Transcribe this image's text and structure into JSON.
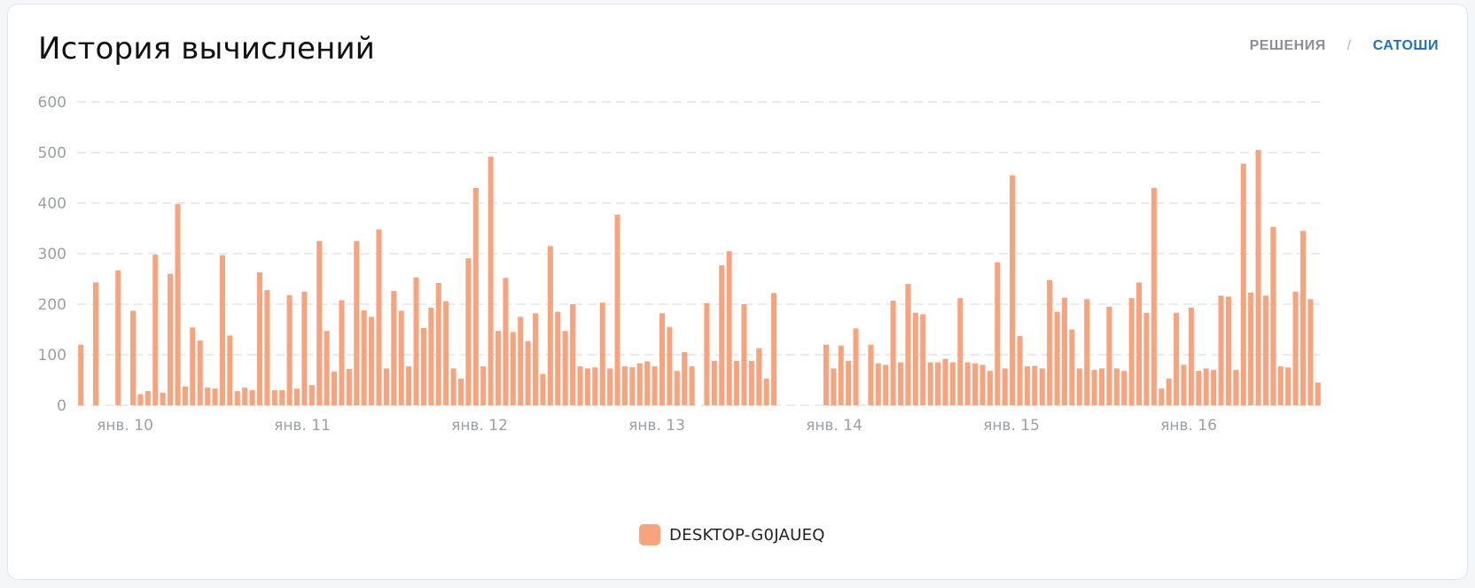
{
  "header": {
    "title": "История вычислений",
    "toggle": {
      "option_a": "РЕШЕНИЯ",
      "separator": "/",
      "option_b": "САТОШИ",
      "active": "option_b"
    }
  },
  "chart_data": {
    "type": "bar",
    "ylim": [
      0,
      600
    ],
    "yticks": [
      "0",
      "100",
      "200",
      "300",
      "400",
      "500",
      "600"
    ],
    "xtick_labels": [
      "янв. 10",
      "янв. 11",
      "янв. 12",
      "янв. 13",
      "янв. 14",
      "янв. 15",
      "янв. 16"
    ],
    "grid": true,
    "legend_position": "bottom-center",
    "series": [
      {
        "name": "DESKTOP-G0JAUEQ",
        "color": "#f7a47e",
        "values": [
          120,
          0,
          243,
          0,
          0,
          267,
          0,
          187,
          22,
          28,
          298,
          25,
          260,
          398,
          37,
          154,
          128,
          35,
          33,
          297,
          138,
          28,
          35,
          30,
          263,
          228,
          30,
          30,
          218,
          33,
          225,
          40,
          325,
          147,
          67,
          208,
          72,
          325,
          188,
          175,
          348,
          73,
          226,
          187,
          77,
          253,
          153,
          193,
          242,
          206,
          73,
          53,
          291,
          430,
          77,
          492,
          147,
          252,
          145,
          175,
          127,
          182,
          62,
          315,
          185,
          147,
          200,
          77,
          73,
          75,
          203,
          73,
          377,
          77,
          75,
          83,
          87,
          77,
          182,
          155,
          68,
          105,
          77,
          0,
          202,
          88,
          277,
          305,
          88,
          200,
          88,
          113,
          53,
          222,
          0,
          0,
          0,
          0,
          0,
          0,
          120,
          73,
          118,
          88,
          152,
          0,
          120,
          83,
          80,
          207,
          85,
          240,
          183,
          180,
          85,
          85,
          92,
          85,
          212,
          85,
          83,
          80,
          68,
          283,
          73,
          455,
          137,
          77,
          78,
          73,
          248,
          185,
          213,
          150,
          73,
          210,
          70,
          73,
          195,
          73,
          68,
          212,
          243,
          183,
          430,
          33,
          53,
          183,
          80,
          193,
          68,
          73,
          70,
          217,
          215,
          70,
          478,
          223,
          505,
          217,
          353,
          77,
          75,
          225,
          345,
          210,
          45
        ]
      }
    ]
  }
}
